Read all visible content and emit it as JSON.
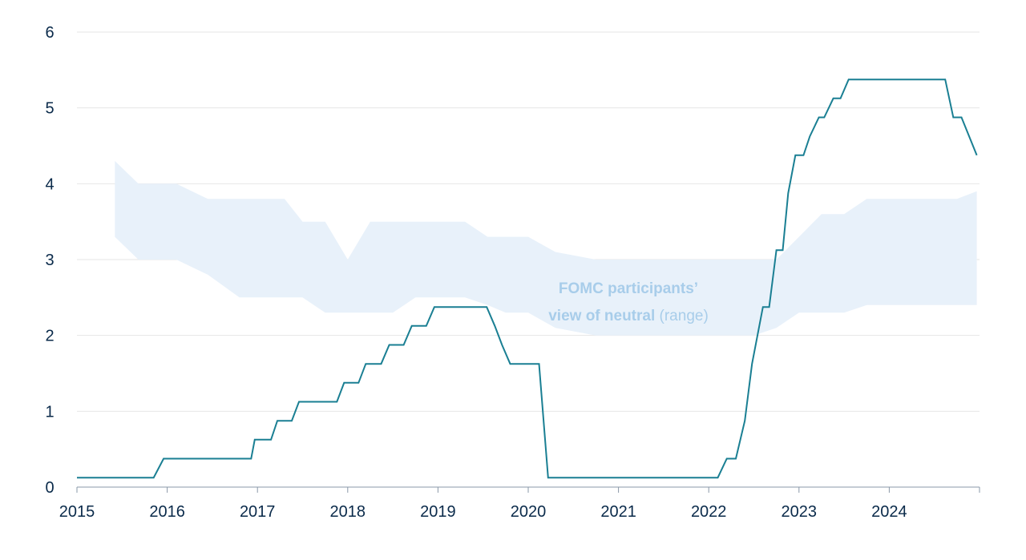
{
  "chart_data": {
    "type": "line",
    "title": "",
    "xlabel": "",
    "ylabel": "",
    "xlim": [
      2015.0,
      2025.0
    ],
    "ylim": [
      0,
      6
    ],
    "grid": true,
    "x_ticks": [
      "2015",
      "2016",
      "2017",
      "2018",
      "2019",
      "2020",
      "2021",
      "2022",
      "2023",
      "2024"
    ],
    "y_ticks": [
      "0",
      "1",
      "2",
      "3",
      "4",
      "5",
      "6"
    ],
    "colors": {
      "line": "#1a7f93",
      "band": "#e8f1fa",
      "grid": "#e6e6e6",
      "axis": "#0a2a4a",
      "annotation": "#a8cdea"
    },
    "annotation": {
      "line1": "FOMC participants’",
      "line2_bold": "view of neutral",
      "line2_rest": " (range)"
    },
    "series": [
      {
        "x": [
          2015.0,
          2015.85,
          2015.96,
          2016.93,
          2016.97,
          2017.15,
          2017.22,
          2017.38,
          2017.46,
          2017.88,
          2017.96,
          2018.12,
          2018.2,
          2018.37,
          2018.46,
          2018.62,
          2018.71,
          2018.87,
          2018.96,
          2019.54,
          2019.63,
          2019.71,
          2019.8,
          2020.12,
          2020.22,
          2022.1,
          2022.2,
          2022.3,
          2022.4,
          2022.48,
          2022.6,
          2022.67,
          2022.75,
          2022.82,
          2022.88,
          2022.96,
          2023.05,
          2023.12,
          2023.22,
          2023.28,
          2023.38,
          2023.46,
          2023.55,
          2024.62,
          2024.71,
          2024.8,
          2024.97
        ],
        "values": [
          0.125,
          0.125,
          0.375,
          0.375,
          0.625,
          0.625,
          0.875,
          0.875,
          1.125,
          1.125,
          1.375,
          1.375,
          1.625,
          1.625,
          1.875,
          1.875,
          2.125,
          2.125,
          2.375,
          2.375,
          2.125,
          1.875,
          1.625,
          1.625,
          0.125,
          0.125,
          0.375,
          0.375,
          0.875,
          1.625,
          2.375,
          2.375,
          3.125,
          3.125,
          3.875,
          4.375,
          4.375,
          4.625,
          4.875,
          4.875,
          5.125,
          5.125,
          5.375,
          5.375,
          4.875,
          4.875,
          4.375
        ]
      }
    ],
    "band": {
      "x": [
        2015.42,
        2015.68,
        2016.1,
        2016.45,
        2016.8,
        2017.3,
        2017.5,
        2017.75,
        2018.0,
        2018.25,
        2018.5,
        2018.75,
        2019.0,
        2019.3,
        2019.55,
        2019.75,
        2020.0,
        2020.3,
        2020.75,
        2021.0,
        2021.5,
        2022.0,
        2022.5,
        2022.75,
        2023.0,
        2023.25,
        2023.5,
        2023.75,
        2024.0,
        2024.25,
        2024.5,
        2024.75,
        2024.97
      ],
      "upper": [
        4.3,
        4.0,
        4.0,
        3.8,
        3.8,
        3.8,
        3.5,
        3.5,
        3.0,
        3.5,
        3.5,
        3.5,
        3.5,
        3.5,
        3.3,
        3.3,
        3.3,
        3.1,
        3.0,
        3.0,
        3.0,
        3.0,
        3.0,
        3.0,
        3.3,
        3.6,
        3.6,
        3.8,
        3.8,
        3.8,
        3.8,
        3.8,
        3.9
      ],
      "lower": [
        3.3,
        3.0,
        3.0,
        2.8,
        2.5,
        2.5,
        2.5,
        2.3,
        2.3,
        2.3,
        2.3,
        2.5,
        2.5,
        2.5,
        2.4,
        2.3,
        2.3,
        2.1,
        2.0,
        2.0,
        2.0,
        2.0,
        2.0,
        2.1,
        2.3,
        2.3,
        2.3,
        2.4,
        2.4,
        2.4,
        2.4,
        2.4,
        2.4
      ]
    }
  }
}
